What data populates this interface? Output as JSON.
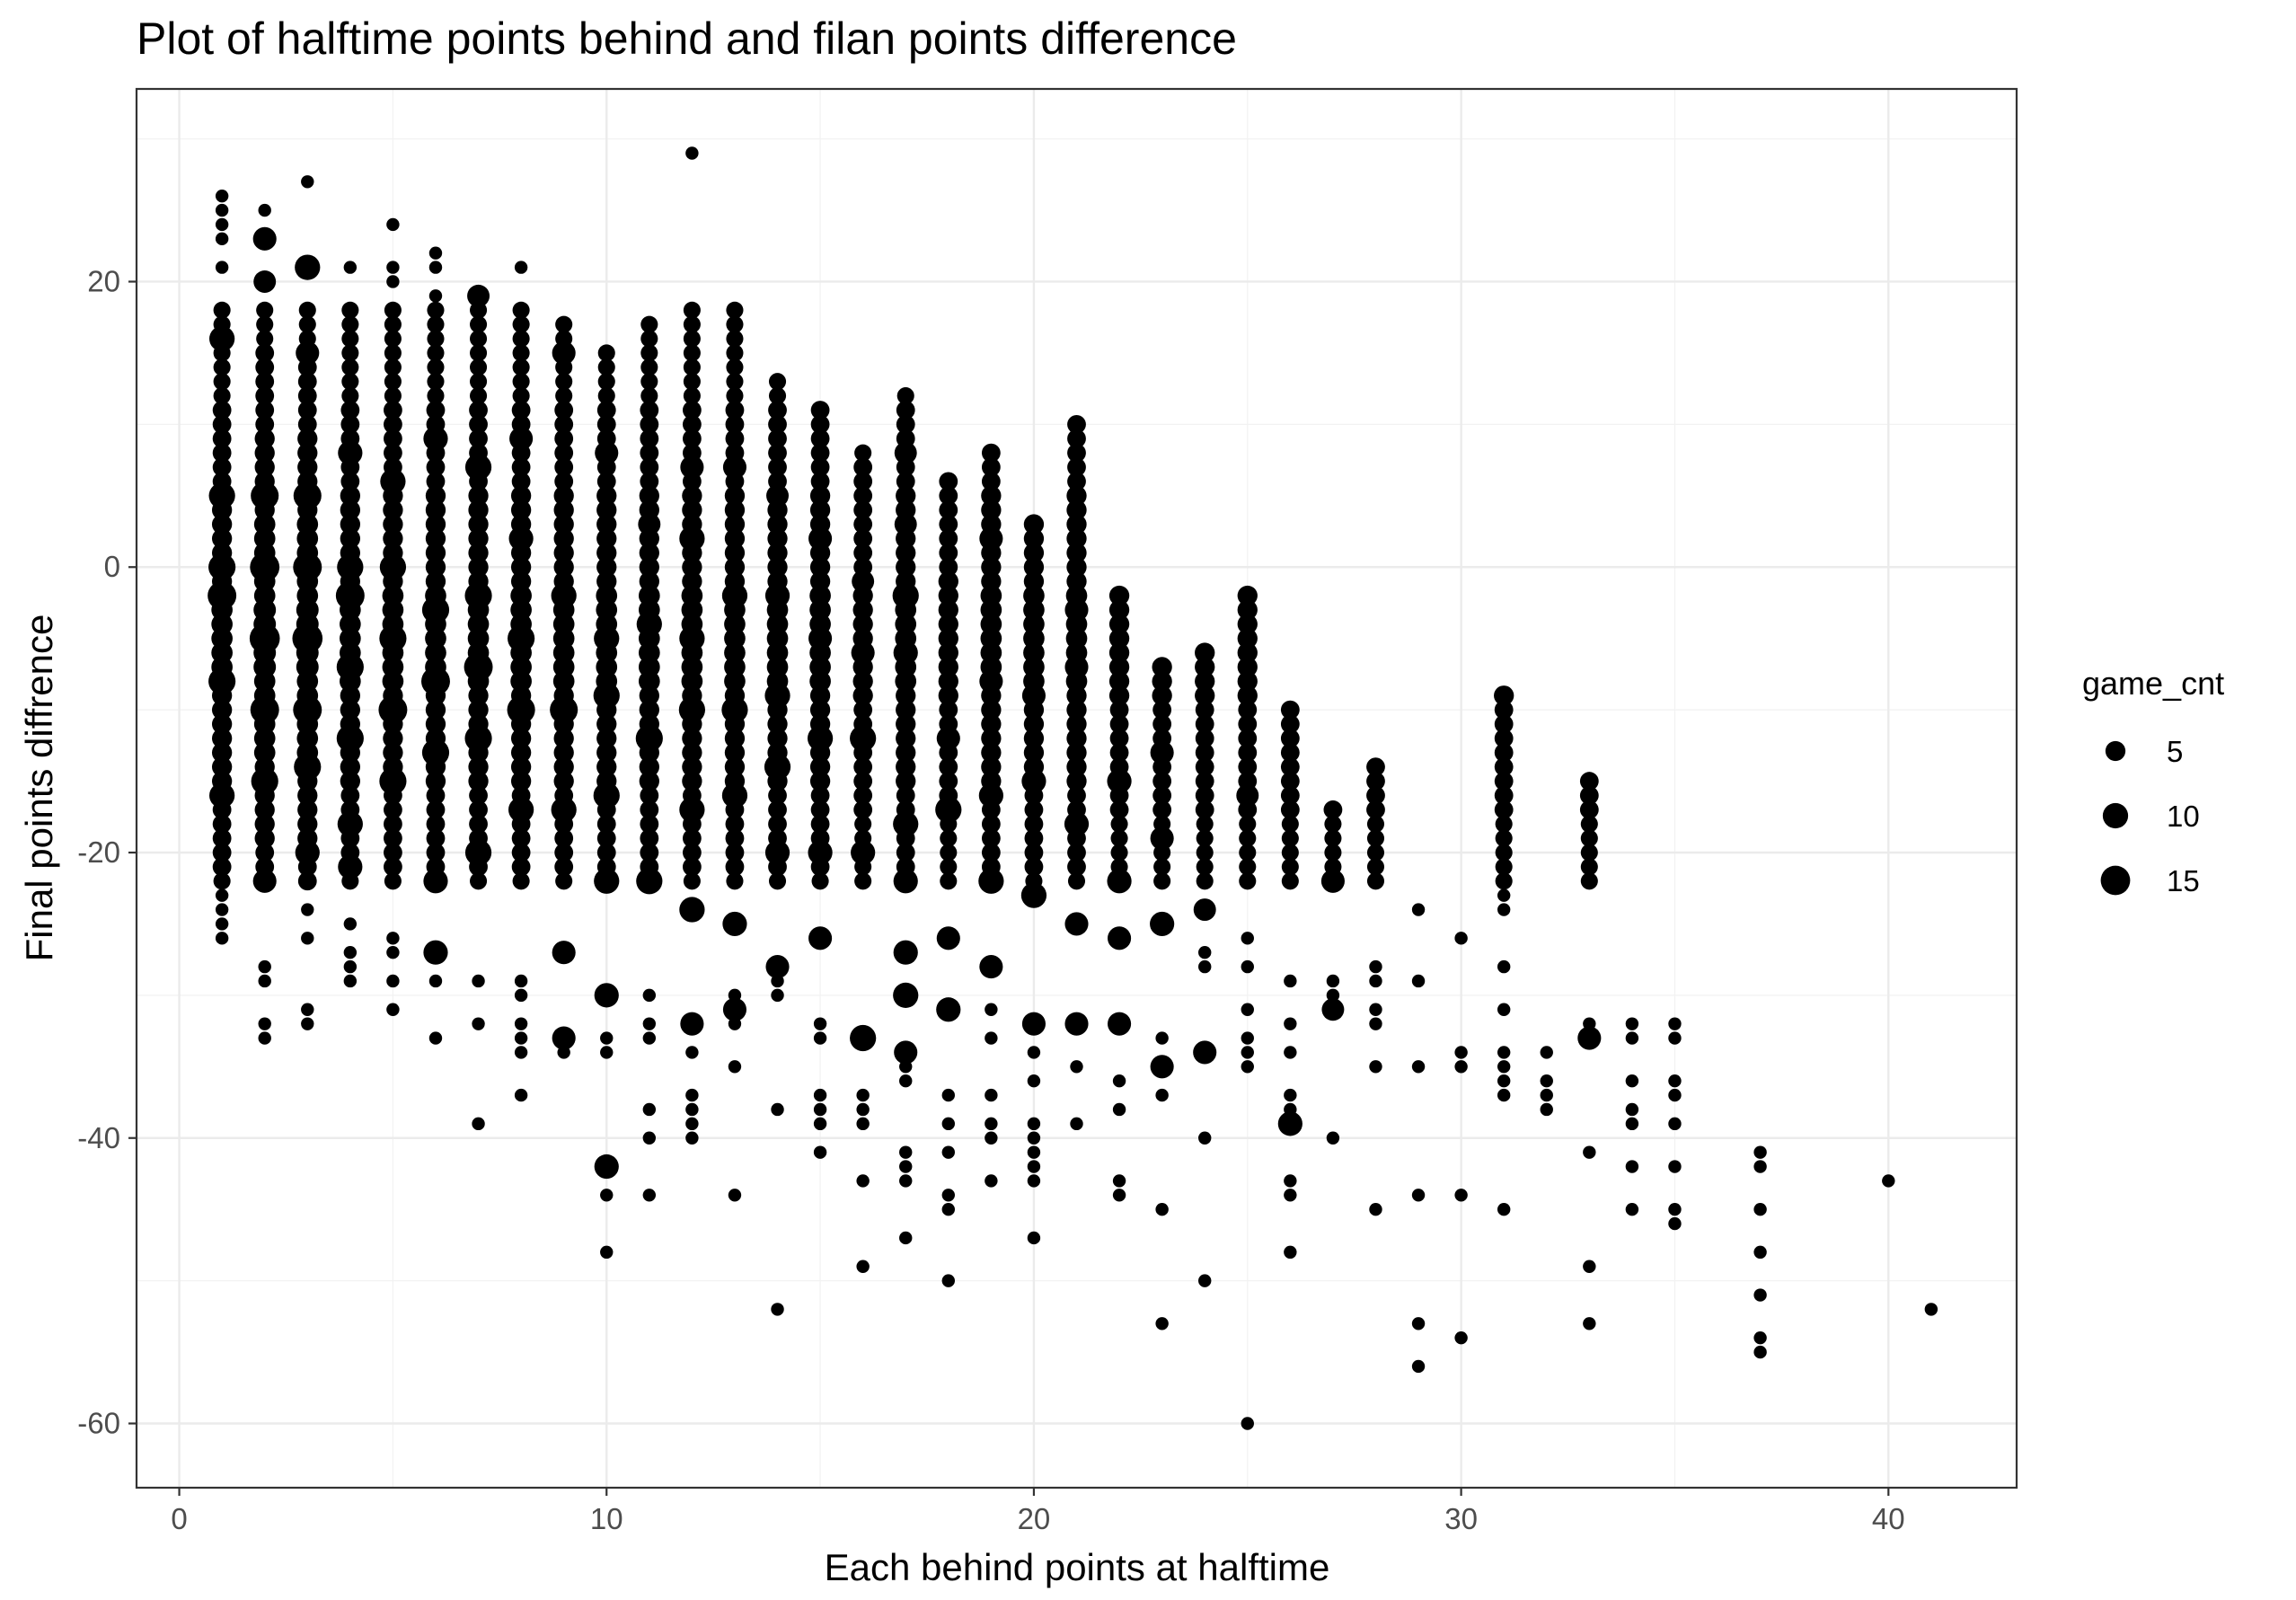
{
  "chart_data": {
    "type": "scatter",
    "title": "Plot of halftime points behind and filan points difference",
    "xlabel": "Each behind points at halftime",
    "ylabel": "Final points diffrence",
    "xlim": [
      -1,
      43
    ],
    "ylim": [
      -64.5,
      33.5
    ],
    "x_ticks": [
      0,
      10,
      20,
      30,
      40
    ],
    "y_ticks": [
      -60,
      -40,
      -20,
      0,
      20
    ],
    "x_tick_labels": [
      "0",
      "10",
      "20",
      "30",
      "40"
    ],
    "y_tick_labels": [
      "-60",
      "-40",
      "-20",
      "0",
      "20"
    ],
    "grid": true,
    "legend": {
      "title": "game_cnt",
      "position": "right",
      "entries": [
        {
          "label": "5",
          "size_value": 5
        },
        {
          "label": "10",
          "size_value": 10
        },
        {
          "label": "15",
          "size_value": 15
        }
      ]
    },
    "size_variable": "game_cnt",
    "point_color": "#000000",
    "columns": [
      {
        "x": 1,
        "y_min": -26,
        "y_max": 26,
        "mid_size": 6,
        "big": [
          [
            16,
            10
          ],
          [
            0,
            12
          ],
          [
            -2,
            14
          ],
          [
            -8,
            12
          ],
          [
            5,
            11
          ],
          [
            -16,
            10
          ]
        ]
      },
      {
        "x": 2,
        "y_min": -33,
        "y_max": 25,
        "mid_size": 7,
        "big": [
          [
            23,
            8
          ],
          [
            20,
            7
          ],
          [
            5,
            13
          ],
          [
            0,
            15
          ],
          [
            -5,
            16
          ],
          [
            -10,
            14
          ],
          [
            -15,
            12
          ],
          [
            -22,
            8
          ]
        ]
      },
      {
        "x": 3,
        "y_min": -32,
        "y_max": 27,
        "mid_size": 7,
        "big": [
          [
            21,
            10
          ],
          [
            15,
            8
          ],
          [
            5,
            13
          ],
          [
            0,
            14
          ],
          [
            -5,
            16
          ],
          [
            -10,
            14
          ],
          [
            -14,
            12
          ],
          [
            -20,
            9
          ]
        ]
      },
      {
        "x": 4,
        "y_min": -29,
        "y_max": 21,
        "mid_size": 6,
        "big": [
          [
            8,
            9
          ],
          [
            0,
            11
          ],
          [
            -2,
            14
          ],
          [
            -7,
            12
          ],
          [
            -12,
            12
          ],
          [
            -18,
            10
          ],
          [
            -21,
            9
          ]
        ]
      },
      {
        "x": 5,
        "y_min": -31,
        "y_max": 24,
        "mid_size": 6,
        "big": [
          [
            6,
            10
          ],
          [
            0,
            11
          ],
          [
            -5,
            12
          ],
          [
            -10,
            14
          ],
          [
            -15,
            12
          ]
        ]
      },
      {
        "x": 6,
        "y_min": -33,
        "y_max": 22,
        "mid_size": 6,
        "big": [
          [
            9,
            9
          ],
          [
            -3,
            12
          ],
          [
            -8,
            14
          ],
          [
            -13,
            12
          ],
          [
            -22,
            9
          ],
          [
            -27,
            9
          ]
        ]
      },
      {
        "x": 7,
        "y_min": -39,
        "y_max": 19,
        "mid_size": 6,
        "big": [
          [
            19,
            7
          ],
          [
            7,
            11
          ],
          [
            -2,
            12
          ],
          [
            -7,
            14
          ],
          [
            -12,
            12
          ],
          [
            -20,
            11
          ]
        ]
      },
      {
        "x": 8,
        "y_min": -37,
        "y_max": 21,
        "mid_size": 6,
        "big": [
          [
            9,
            8
          ],
          [
            2,
            9
          ],
          [
            -5,
            12
          ],
          [
            -10,
            13
          ],
          [
            -17,
            10
          ]
        ]
      },
      {
        "x": 9,
        "y_min": -34,
        "y_max": 17,
        "mid_size": 6,
        "big": [
          [
            15,
            8
          ],
          [
            -2,
            10
          ],
          [
            -10,
            13
          ],
          [
            -17,
            10
          ],
          [
            -27,
            8
          ],
          [
            -33,
            8
          ]
        ]
      },
      {
        "x": 10,
        "y_min": -48,
        "y_max": 15,
        "mid_size": 6,
        "big": [
          [
            8,
            8
          ],
          [
            -5,
            10
          ],
          [
            -9,
            11
          ],
          [
            -16,
            11
          ],
          [
            -22,
            10
          ],
          [
            -30,
            9
          ],
          [
            -42,
            9
          ]
        ]
      },
      {
        "x": 11,
        "y_min": -44,
        "y_max": 17,
        "mid_size": 6,
        "big": [
          [
            3,
            7
          ],
          [
            -4,
            10
          ],
          [
            -12,
            12
          ],
          [
            -22,
            11
          ]
        ]
      },
      {
        "x": 12,
        "y_min": -40,
        "y_max": 29,
        "mid_size": 6,
        "big": [
          [
            7,
            8
          ],
          [
            2,
            10
          ],
          [
            -5,
            10
          ],
          [
            -10,
            11
          ],
          [
            -17,
            10
          ],
          [
            -24,
            10
          ],
          [
            -32,
            8
          ]
        ]
      },
      {
        "x": 13,
        "y_min": -44,
        "y_max": 18,
        "mid_size": 6,
        "big": [
          [
            7,
            8
          ],
          [
            -2,
            10
          ],
          [
            -10,
            11
          ],
          [
            -16,
            10
          ],
          [
            -25,
            9
          ],
          [
            -31,
            8
          ]
        ]
      },
      {
        "x": 14,
        "y_min": -52,
        "y_max": 13,
        "mid_size": 6,
        "big": [
          [
            5,
            7
          ],
          [
            -2,
            9
          ],
          [
            -9,
            10
          ],
          [
            -14,
            11
          ],
          [
            -20,
            9
          ],
          [
            -28,
            8
          ]
        ]
      },
      {
        "x": 15,
        "y_min": -41,
        "y_max": 11,
        "mid_size": 6,
        "big": [
          [
            2,
            8
          ],
          [
            -5,
            8
          ],
          [
            -12,
            10
          ],
          [
            -20,
            9
          ],
          [
            -26,
            8
          ]
        ]
      },
      {
        "x": 16,
        "y_min": -49,
        "y_max": 8,
        "mid_size": 5,
        "big": [
          [
            -1,
            7
          ],
          [
            -6,
            8
          ],
          [
            -12,
            11
          ],
          [
            -20,
            9
          ],
          [
            -33,
            11
          ]
        ]
      },
      {
        "x": 17,
        "y_min": -47,
        "y_max": 12,
        "mid_size": 6,
        "big": [
          [
            8,
            7
          ],
          [
            3,
            7
          ],
          [
            -2,
            11
          ],
          [
            -6,
            9
          ],
          [
            -18,
            10
          ],
          [
            -22,
            9
          ],
          [
            -27,
            9
          ],
          [
            -30,
            10
          ],
          [
            -34,
            8
          ]
        ]
      },
      {
        "x": 18,
        "y_min": -50,
        "y_max": 6,
        "mid_size": 5,
        "big": [
          [
            -12,
            8
          ],
          [
            -17,
            11
          ],
          [
            -26,
            8
          ],
          [
            -31,
            9
          ]
        ]
      },
      {
        "x": 19,
        "y_min": -43,
        "y_max": 8,
        "mid_size": 6,
        "big": [
          [
            2,
            8
          ],
          [
            -8,
            8
          ],
          [
            -16,
            9
          ],
          [
            -22,
            10
          ],
          [
            -28,
            8
          ]
        ]
      },
      {
        "x": 20,
        "y_min": -47,
        "y_max": 3,
        "mid_size": 6,
        "big": [
          [
            -9,
            8
          ],
          [
            -15,
            9
          ],
          [
            -23,
            10
          ],
          [
            -32,
            8
          ]
        ]
      },
      {
        "x": 21,
        "y_min": -39,
        "y_max": 10,
        "mid_size": 6,
        "big": [
          [
            -3,
            8
          ],
          [
            -7,
            8
          ],
          [
            -18,
            9
          ],
          [
            -25,
            8
          ],
          [
            -32,
            8
          ]
        ]
      },
      {
        "x": 22,
        "y_min": -44,
        "y_max": -2,
        "mid_size": 5,
        "big": [
          [
            -15,
            9
          ],
          [
            -22,
            9
          ],
          [
            -26,
            8
          ],
          [
            -32,
            8
          ]
        ]
      },
      {
        "x": 23,
        "y_min": -53,
        "y_max": -7,
        "mid_size": 5,
        "big": [
          [
            -13,
            8
          ],
          [
            -19,
            8
          ],
          [
            -25,
            9
          ],
          [
            -35,
            8
          ]
        ]
      },
      {
        "x": 24,
        "y_min": -50,
        "y_max": -6,
        "mid_size": 5,
        "big": [
          [
            -24,
            7
          ],
          [
            -34,
            8
          ]
        ]
      },
      {
        "x": 25,
        "y_min": -60,
        "y_max": -2,
        "mid_size": 5,
        "big": [
          [
            -16,
            7
          ]
        ]
      },
      {
        "x": 26,
        "y_min": -48,
        "y_max": -10,
        "mid_size": 5,
        "big": [
          [
            -39,
            9
          ]
        ]
      },
      {
        "x": 27,
        "y_min": -40,
        "y_max": -17,
        "mid_size": 5,
        "big": [
          [
            -22,
            8
          ],
          [
            -31,
            7
          ]
        ]
      },
      {
        "x": 28,
        "y_min": -45,
        "y_max": -14,
        "mid_size": 5,
        "big": []
      },
      {
        "x": 29,
        "y_min": -56,
        "y_max": -24,
        "mid_size": 5,
        "big": []
      },
      {
        "x": 30,
        "y_min": -54,
        "y_max": -26,
        "mid_size": 5,
        "big": []
      },
      {
        "x": 31,
        "y_min": -45,
        "y_max": -9,
        "mid_size": 5,
        "big": []
      },
      {
        "x": 32,
        "y_min": -38,
        "y_max": -34,
        "mid_size": 5,
        "big": []
      },
      {
        "x": 33,
        "y_min": -53,
        "y_max": -15,
        "mid_size": 5,
        "big": [
          [
            -33,
            8
          ]
        ]
      },
      {
        "x": 34,
        "y_min": -45,
        "y_max": -32,
        "mid_size": 5,
        "big": []
      },
      {
        "x": 35,
        "y_min": -46,
        "y_max": -32,
        "mid_size": 5,
        "big": []
      },
      {
        "x": 37,
        "y_min": -55,
        "y_max": -41,
        "mid_size": 5,
        "big": []
      },
      {
        "x": 40,
        "y_min": -43,
        "y_max": -43,
        "mid_size": 5,
        "big": []
      },
      {
        "x": 41,
        "y_min": -52,
        "y_max": -52,
        "mid_size": 5,
        "big": []
      }
    ],
    "sparse_points": {
      "1": [
        26,
        25,
        24,
        23,
        21,
        -23,
        -24,
        -25,
        -26
      ],
      "2": [
        25,
        23,
        -28,
        -29,
        -32,
        -33
      ],
      "3": [
        27,
        -24,
        -26,
        -31,
        -32
      ],
      "4": [
        21,
        -25,
        -27,
        -28,
        -29
      ],
      "5": [
        24,
        21,
        20,
        -26,
        -27,
        -29,
        -31
      ],
      "6": [
        22,
        21,
        19,
        -29,
        -33
      ],
      "7": [
        19,
        -29,
        -32,
        -39
      ],
      "8": [
        21,
        17,
        -29,
        -30,
        -32,
        -33,
        -34,
        -37
      ],
      "9": [
        17,
        16,
        -33,
        -34
      ],
      "10": [
        15,
        13,
        -33,
        -34,
        -42,
        -44,
        -48
      ],
      "11": [
        17,
        16,
        14,
        12,
        -30,
        -32,
        -33,
        -38,
        -40,
        -44
      ],
      "12": [
        29,
        18,
        13,
        -34,
        -37,
        -38,
        -39,
        -40
      ],
      "13": [
        18,
        14,
        13,
        -30,
        -31,
        -32,
        -35,
        -44
      ],
      "14": [
        13,
        7,
        -29,
        -30,
        -38,
        -52
      ],
      "15": [
        11,
        7,
        5,
        -32,
        -33,
        -37,
        -38,
        -39,
        -41
      ],
      "16": [
        8,
        2,
        -37,
        -38,
        -39,
        -43,
        -49
      ],
      "17": [
        12,
        8,
        -35,
        -36,
        -41,
        -42,
        -43,
        -47
      ],
      "18": [
        6,
        -2,
        -37,
        -39,
        -41,
        -44,
        -45,
        -50
      ],
      "19": [
        8,
        3,
        -31,
        -33,
        -37,
        -39,
        -40,
        -43
      ],
      "20": [
        3,
        -3,
        -34,
        -36,
        -39,
        -40,
        -41,
        -42,
        -43,
        -47
      ],
      "21": [
        10,
        7,
        1,
        -35,
        -39
      ],
      "22": [
        -2,
        -5,
        -10,
        -36,
        -38,
        -43,
        -44
      ],
      "23": [
        -7,
        -8,
        -9,
        -10,
        -33,
        -37,
        -45,
        -53
      ],
      "24": [
        -6,
        -9,
        -11,
        -12,
        -22,
        -27,
        -28,
        -40,
        -50
      ],
      "25": [
        -2,
        -7,
        -12,
        -21,
        -26,
        -28,
        -31,
        -33,
        -34,
        -35,
        -60
      ],
      "26": [
        -10,
        -12,
        -29,
        -32,
        -34,
        -37,
        -38,
        -43,
        -44,
        -48
      ],
      "27": [
        -17,
        -19,
        -29,
        -30,
        -40
      ],
      "28": [
        -14,
        -19,
        -28,
        -29,
        -31,
        -32,
        -35,
        -45
      ],
      "29": [
        -24,
        -29,
        -35,
        -44,
        -53,
        -56
      ],
      "30": [
        -26,
        -34,
        -35,
        -44,
        -54
      ],
      "31": [
        -9,
        -20,
        -21,
        -23,
        -24,
        -28,
        -31,
        -34,
        -35,
        -36,
        -37,
        -45
      ],
      "32": [
        -34,
        -37,
        -38
      ],
      "33": [
        -15,
        -32,
        -41,
        -49,
        -53
      ],
      "34": [
        -32,
        -38,
        -45
      ],
      "35": [
        -32,
        -36,
        -37,
        -46
      ],
      "37": [
        -41,
        -55
      ],
      "40": [
        -43
      ],
      "41": [
        -52
      ]
    }
  }
}
